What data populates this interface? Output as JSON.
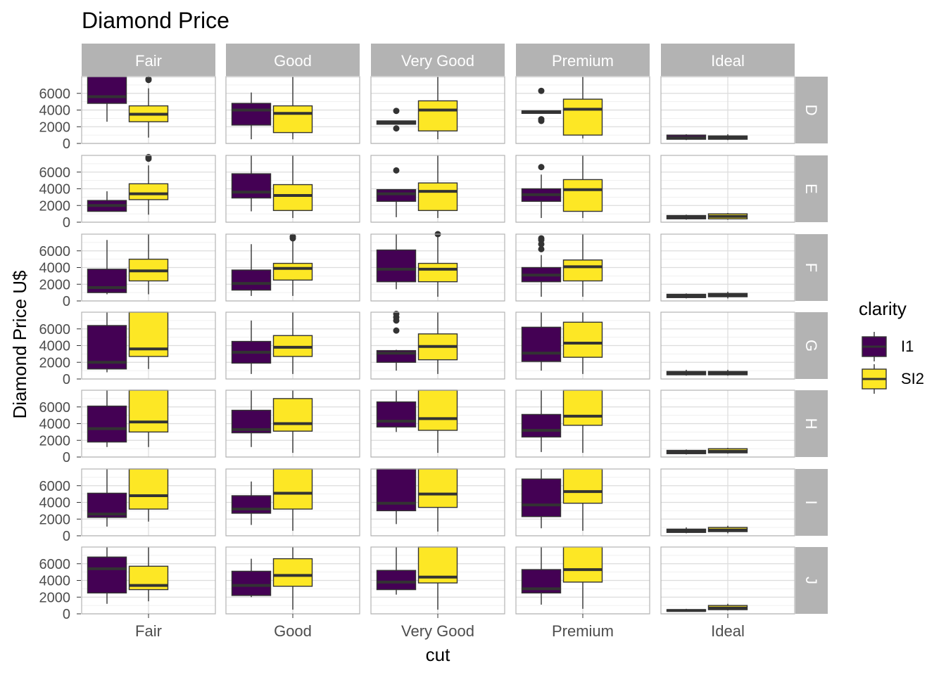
{
  "chart_data": {
    "type": "boxplot-facet-grid",
    "title": "Diamond Price",
    "xlabel": "cut",
    "ylabel": "Diamond Price U$",
    "ylim": [
      0,
      8000
    ],
    "yticks": [
      0,
      2000,
      4000,
      6000
    ],
    "grid": true,
    "legend_position": "right",
    "cols": [
      "Fair",
      "Good",
      "Very Good",
      "Premium",
      "Ideal"
    ],
    "rows": [
      "D",
      "E",
      "F",
      "G",
      "H",
      "I",
      "J"
    ],
    "legend": {
      "title": "clarity",
      "items": [
        {
          "label": "I1",
          "color": "#440154"
        },
        {
          "label": "SI2",
          "color": "#FDE725"
        }
      ]
    },
    "facets": [
      {
        "row": "D",
        "col": "Fair",
        "boxes": [
          {
            "clarity": "I1",
            "q1": 4800,
            "median": 5600,
            "q3": 8000,
            "lower": 2600,
            "upper": 8000,
            "outliers": []
          },
          {
            "clarity": "SI2",
            "q1": 2600,
            "median": 3500,
            "q3": 4500,
            "lower": 700,
            "upper": 6600,
            "outliers": [
              7600,
              7700
            ]
          }
        ]
      },
      {
        "row": "D",
        "col": "Good",
        "boxes": [
          {
            "clarity": "I1",
            "q1": 2200,
            "median": 4000,
            "q3": 4800,
            "lower": 500,
            "upper": 6100,
            "outliers": []
          },
          {
            "clarity": "SI2",
            "q1": 1300,
            "median": 3600,
            "q3": 4500,
            "lower": 500,
            "upper": 8000,
            "outliers": []
          }
        ]
      },
      {
        "row": "D",
        "col": "Very Good",
        "boxes": [
          {
            "clarity": "I1",
            "q1": 2300,
            "median": 2500,
            "q3": 2700,
            "lower": 2300,
            "upper": 2700,
            "outliers": [
              1800,
              3900
            ]
          },
          {
            "clarity": "SI2",
            "q1": 1500,
            "median": 4000,
            "q3": 5100,
            "lower": 500,
            "upper": 8000,
            "outliers": []
          }
        ]
      },
      {
        "row": "D",
        "col": "Premium",
        "boxes": [
          {
            "clarity": "I1",
            "q1": 3600,
            "median": 3800,
            "q3": 3900,
            "lower": 3600,
            "upper": 3900,
            "outliers": [
              2700,
              2900,
              6300
            ]
          },
          {
            "clarity": "SI2",
            "q1": 1000,
            "median": 4100,
            "q3": 5300,
            "lower": 600,
            "upper": 8000,
            "outliers": []
          }
        ]
      },
      {
        "row": "D",
        "col": "Ideal",
        "boxes": [
          {
            "clarity": "I1",
            "q1": 500,
            "median": 700,
            "q3": 1000,
            "lower": 400,
            "upper": 1100,
            "outliers": []
          },
          {
            "clarity": "SI2",
            "q1": 500,
            "median": 700,
            "q3": 900,
            "lower": 400,
            "upper": 1100,
            "outliers": []
          }
        ]
      },
      {
        "row": "E",
        "col": "Fair",
        "boxes": [
          {
            "clarity": "I1",
            "q1": 1300,
            "median": 2000,
            "q3": 2600,
            "lower": 1300,
            "upper": 3700,
            "outliers": []
          },
          {
            "clarity": "SI2",
            "q1": 2700,
            "median": 3400,
            "q3": 4600,
            "lower": 900,
            "upper": 6800,
            "outliers": [
              7600,
              7800
            ]
          }
        ]
      },
      {
        "row": "E",
        "col": "Good",
        "boxes": [
          {
            "clarity": "I1",
            "q1": 2900,
            "median": 3600,
            "q3": 5800,
            "lower": 1300,
            "upper": 8000,
            "outliers": []
          },
          {
            "clarity": "SI2",
            "q1": 1400,
            "median": 3200,
            "q3": 4500,
            "lower": 500,
            "upper": 8000,
            "outliers": []
          }
        ]
      },
      {
        "row": "E",
        "col": "Very Good",
        "boxes": [
          {
            "clarity": "I1",
            "q1": 2500,
            "median": 3400,
            "q3": 3900,
            "lower": 600,
            "upper": 3900,
            "outliers": [
              6200
            ]
          },
          {
            "clarity": "SI2",
            "q1": 1400,
            "median": 3700,
            "q3": 4700,
            "lower": 500,
            "upper": 8000,
            "outliers": []
          }
        ]
      },
      {
        "row": "E",
        "col": "Premium",
        "boxes": [
          {
            "clarity": "I1",
            "q1": 2500,
            "median": 3300,
            "q3": 4000,
            "lower": 500,
            "upper": 5700,
            "outliers": [
              6600
            ]
          },
          {
            "clarity": "SI2",
            "q1": 1300,
            "median": 3900,
            "q3": 5100,
            "lower": 500,
            "upper": 8000,
            "outliers": []
          }
        ]
      },
      {
        "row": "E",
        "col": "Ideal",
        "boxes": [
          {
            "clarity": "I1",
            "q1": 400,
            "median": 600,
            "q3": 800,
            "lower": 300,
            "upper": 900,
            "outliers": []
          },
          {
            "clarity": "SI2",
            "q1": 400,
            "median": 700,
            "q3": 1000,
            "lower": 300,
            "upper": 1100,
            "outliers": []
          }
        ]
      },
      {
        "row": "F",
        "col": "Fair",
        "boxes": [
          {
            "clarity": "I1",
            "q1": 1000,
            "median": 1600,
            "q3": 3800,
            "lower": 800,
            "upper": 7300,
            "outliers": []
          },
          {
            "clarity": "SI2",
            "q1": 2400,
            "median": 3600,
            "q3": 5000,
            "lower": 800,
            "upper": 8000,
            "outliers": []
          }
        ]
      },
      {
        "row": "F",
        "col": "Good",
        "boxes": [
          {
            "clarity": "I1",
            "q1": 1300,
            "median": 2100,
            "q3": 3700,
            "lower": 600,
            "upper": 6800,
            "outliers": []
          },
          {
            "clarity": "SI2",
            "q1": 2500,
            "median": 3900,
            "q3": 4500,
            "lower": 600,
            "upper": 7200,
            "outliers": [
              7500,
              7700
            ]
          }
        ]
      },
      {
        "row": "F",
        "col": "Very Good",
        "boxes": [
          {
            "clarity": "I1",
            "q1": 2300,
            "median": 3800,
            "q3": 6100,
            "lower": 1400,
            "upper": 8000,
            "outliers": []
          },
          {
            "clarity": "SI2",
            "q1": 2300,
            "median": 3800,
            "q3": 4500,
            "lower": 500,
            "upper": 7800,
            "outliers": [
              8000
            ]
          }
        ]
      },
      {
        "row": "F",
        "col": "Premium",
        "boxes": [
          {
            "clarity": "I1",
            "q1": 2300,
            "median": 3100,
            "q3": 4000,
            "lower": 500,
            "upper": 5500,
            "outliers": [
              6200,
              6800,
              7300,
              7500
            ]
          },
          {
            "clarity": "SI2",
            "q1": 2400,
            "median": 4100,
            "q3": 4900,
            "lower": 500,
            "upper": 8000,
            "outliers": []
          }
        ]
      },
      {
        "row": "F",
        "col": "Ideal",
        "boxes": [
          {
            "clarity": "I1",
            "q1": 400,
            "median": 600,
            "q3": 800,
            "lower": 300,
            "upper": 900,
            "outliers": []
          },
          {
            "clarity": "SI2",
            "q1": 500,
            "median": 700,
            "q3": 900,
            "lower": 300,
            "upper": 1100,
            "outliers": []
          }
        ]
      },
      {
        "row": "G",
        "col": "Fair",
        "boxes": [
          {
            "clarity": "I1",
            "q1": 1200,
            "median": 2000,
            "q3": 6400,
            "lower": 800,
            "upper": 8000,
            "outliers": []
          },
          {
            "clarity": "SI2",
            "q1": 2700,
            "median": 3600,
            "q3": 8000,
            "lower": 1200,
            "upper": 8000,
            "outliers": []
          }
        ]
      },
      {
        "row": "G",
        "col": "Good",
        "boxes": [
          {
            "clarity": "I1",
            "q1": 1900,
            "median": 3200,
            "q3": 4500,
            "lower": 600,
            "upper": 7000,
            "outliers": []
          },
          {
            "clarity": "SI2",
            "q1": 2700,
            "median": 3800,
            "q3": 5200,
            "lower": 600,
            "upper": 8000,
            "outliers": []
          }
        ]
      },
      {
        "row": "G",
        "col": "Very Good",
        "boxes": [
          {
            "clarity": "I1",
            "q1": 2000,
            "median": 3100,
            "q3": 3400,
            "lower": 1000,
            "upper": 3500,
            "outliers": [
              5800,
              7000,
              7400,
              7800
            ]
          },
          {
            "clarity": "SI2",
            "q1": 2300,
            "median": 3900,
            "q3": 5400,
            "lower": 600,
            "upper": 8000,
            "outliers": []
          }
        ]
      },
      {
        "row": "G",
        "col": "Premium",
        "boxes": [
          {
            "clarity": "I1",
            "q1": 2100,
            "median": 3100,
            "q3": 6200,
            "lower": 1000,
            "upper": 8000,
            "outliers": []
          },
          {
            "clarity": "SI2",
            "q1": 2600,
            "median": 4300,
            "q3": 6800,
            "lower": 600,
            "upper": 8000,
            "outliers": []
          }
        ]
      },
      {
        "row": "G",
        "col": "Ideal",
        "boxes": [
          {
            "clarity": "I1",
            "q1": 500,
            "median": 700,
            "q3": 900,
            "lower": 400,
            "upper": 1100,
            "outliers": []
          },
          {
            "clarity": "SI2",
            "q1": 500,
            "median": 700,
            "q3": 900,
            "lower": 400,
            "upper": 1100,
            "outliers": []
          }
        ]
      },
      {
        "row": "H",
        "col": "Fair",
        "boxes": [
          {
            "clarity": "I1",
            "q1": 1800,
            "median": 3400,
            "q3": 6100,
            "lower": 1200,
            "upper": 8000,
            "outliers": []
          },
          {
            "clarity": "SI2",
            "q1": 3000,
            "median": 4200,
            "q3": 8000,
            "lower": 1200,
            "upper": 8000,
            "outliers": []
          }
        ]
      },
      {
        "row": "H",
        "col": "Good",
        "boxes": [
          {
            "clarity": "I1",
            "q1": 2900,
            "median": 3300,
            "q3": 5600,
            "lower": 1200,
            "upper": 8000,
            "outliers": []
          },
          {
            "clarity": "SI2",
            "q1": 3100,
            "median": 4000,
            "q3": 7000,
            "lower": 500,
            "upper": 8000,
            "outliers": []
          }
        ]
      },
      {
        "row": "H",
        "col": "Very Good",
        "boxes": [
          {
            "clarity": "I1",
            "q1": 3600,
            "median": 4300,
            "q3": 6600,
            "lower": 3000,
            "upper": 8000,
            "outliers": []
          },
          {
            "clarity": "SI2",
            "q1": 3200,
            "median": 4600,
            "q3": 8000,
            "lower": 500,
            "upper": 8000,
            "outliers": []
          }
        ]
      },
      {
        "row": "H",
        "col": "Premium",
        "boxes": [
          {
            "clarity": "I1",
            "q1": 2400,
            "median": 3200,
            "q3": 5100,
            "lower": 600,
            "upper": 8000,
            "outliers": []
          },
          {
            "clarity": "SI2",
            "q1": 3800,
            "median": 4900,
            "q3": 8000,
            "lower": 500,
            "upper": 8000,
            "outliers": []
          }
        ]
      },
      {
        "row": "H",
        "col": "Ideal",
        "boxes": [
          {
            "clarity": "I1",
            "q1": 400,
            "median": 600,
            "q3": 800,
            "lower": 300,
            "upper": 900,
            "outliers": []
          },
          {
            "clarity": "SI2",
            "q1": 500,
            "median": 700,
            "q3": 1000,
            "lower": 400,
            "upper": 1100,
            "outliers": []
          }
        ]
      },
      {
        "row": "I",
        "col": "Fair",
        "boxes": [
          {
            "clarity": "I1",
            "q1": 2200,
            "median": 2600,
            "q3": 5100,
            "lower": 1100,
            "upper": 8000,
            "outliers": []
          },
          {
            "clarity": "SI2",
            "q1": 3200,
            "median": 4800,
            "q3": 8000,
            "lower": 1700,
            "upper": 8000,
            "outliers": []
          }
        ]
      },
      {
        "row": "I",
        "col": "Good",
        "boxes": [
          {
            "clarity": "I1",
            "q1": 2700,
            "median": 3200,
            "q3": 4800,
            "lower": 1300,
            "upper": 6500,
            "outliers": []
          },
          {
            "clarity": "SI2",
            "q1": 3200,
            "median": 5100,
            "q3": 8000,
            "lower": 600,
            "upper": 8000,
            "outliers": []
          }
        ]
      },
      {
        "row": "I",
        "col": "Very Good",
        "boxes": [
          {
            "clarity": "I1",
            "q1": 3000,
            "median": 3900,
            "q3": 8000,
            "lower": 1400,
            "upper": 8000,
            "outliers": []
          },
          {
            "clarity": "SI2",
            "q1": 3400,
            "median": 5000,
            "q3": 8000,
            "lower": 500,
            "upper": 8000,
            "outliers": []
          }
        ]
      },
      {
        "row": "I",
        "col": "Premium",
        "boxes": [
          {
            "clarity": "I1",
            "q1": 2300,
            "median": 3700,
            "q3": 6800,
            "lower": 900,
            "upper": 8000,
            "outliers": []
          },
          {
            "clarity": "SI2",
            "q1": 3900,
            "median": 5300,
            "q3": 8000,
            "lower": 600,
            "upper": 8000,
            "outliers": []
          }
        ]
      },
      {
        "row": "I",
        "col": "Ideal",
        "boxes": [
          {
            "clarity": "I1",
            "q1": 400,
            "median": 600,
            "q3": 800,
            "lower": 300,
            "upper": 1000,
            "outliers": []
          },
          {
            "clarity": "SI2",
            "q1": 500,
            "median": 700,
            "q3": 1000,
            "lower": 300,
            "upper": 1200,
            "outliers": []
          }
        ]
      },
      {
        "row": "J",
        "col": "Fair",
        "boxes": [
          {
            "clarity": "I1",
            "q1": 2500,
            "median": 5400,
            "q3": 6800,
            "lower": 1200,
            "upper": 8000,
            "outliers": []
          },
          {
            "clarity": "SI2",
            "q1": 2900,
            "median": 3400,
            "q3": 5700,
            "lower": 1500,
            "upper": 8000,
            "outliers": []
          }
        ]
      },
      {
        "row": "J",
        "col": "Good",
        "boxes": [
          {
            "clarity": "I1",
            "q1": 2200,
            "median": 3400,
            "q3": 5100,
            "lower": 2000,
            "upper": 6600,
            "outliers": []
          },
          {
            "clarity": "SI2",
            "q1": 3300,
            "median": 4600,
            "q3": 6600,
            "lower": 500,
            "upper": 8000,
            "outliers": []
          }
        ]
      },
      {
        "row": "J",
        "col": "Very Good",
        "boxes": [
          {
            "clarity": "I1",
            "q1": 2900,
            "median": 3800,
            "q3": 5200,
            "lower": 2300,
            "upper": 8000,
            "outliers": []
          },
          {
            "clarity": "SI2",
            "q1": 3700,
            "median": 4400,
            "q3": 8000,
            "lower": 500,
            "upper": 8000,
            "outliers": []
          }
        ]
      },
      {
        "row": "J",
        "col": "Premium",
        "boxes": [
          {
            "clarity": "I1",
            "q1": 2500,
            "median": 3000,
            "q3": 5300,
            "lower": 1100,
            "upper": 8000,
            "outliers": []
          },
          {
            "clarity": "SI2",
            "q1": 3800,
            "median": 5300,
            "q3": 8000,
            "lower": 600,
            "upper": 8000,
            "outliers": []
          }
        ]
      },
      {
        "row": "J",
        "col": "Ideal",
        "boxes": [
          {
            "clarity": "I1",
            "q1": 300,
            "median": 400,
            "q3": 500,
            "lower": 300,
            "upper": 600,
            "outliers": []
          },
          {
            "clarity": "SI2",
            "q1": 500,
            "median": 700,
            "q3": 1000,
            "lower": 400,
            "upper": 1200,
            "outliers": []
          }
        ]
      }
    ]
  }
}
